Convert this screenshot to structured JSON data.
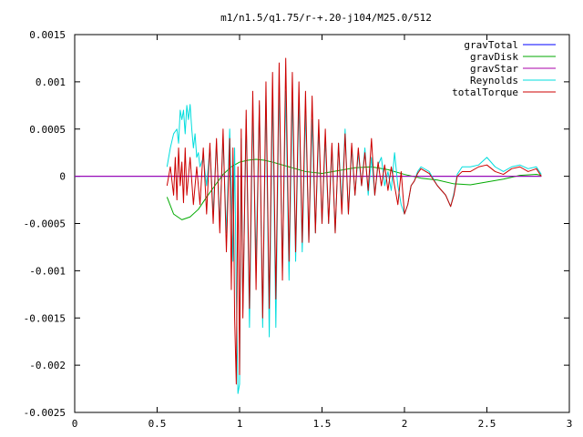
{
  "chart_data": {
    "type": "line",
    "title": "m1/n1.5/q1.75/r-+.20-j104/M25.0/512",
    "xlabel": "",
    "ylabel": "",
    "xlim": [
      0,
      3
    ],
    "ylim": [
      -0.0025,
      0.0015
    ],
    "x_ticks": [
      0,
      0.5,
      1,
      1.5,
      2,
      2.5,
      3
    ],
    "x_tick_labels": [
      "0",
      "0.5",
      "1",
      "1.5",
      "2",
      "2.5",
      "3"
    ],
    "y_ticks": [
      0.0015,
      0.001,
      0.0005,
      0,
      -0.0005,
      -0.001,
      -0.0015,
      -0.002,
      -0.0025
    ],
    "y_tick_labels": [
      "0.0015",
      "0.001",
      "0.0005",
      "0",
      "-0.0005",
      "-0.001",
      "-0.0015",
      "-0.002",
      "-0.0025"
    ],
    "grid": false,
    "legend_position": "top-right",
    "series": [
      {
        "name": "gravTotal",
        "color": "#0000ff",
        "x": [
          0,
          2.83
        ],
        "y": [
          0,
          0
        ]
      },
      {
        "name": "gravDisk",
        "color": "#00aa00",
        "x": [
          0.56,
          0.6,
          0.65,
          0.7,
          0.75,
          0.8,
          0.85,
          0.9,
          0.95,
          1.0,
          1.05,
          1.1,
          1.15,
          1.2,
          1.3,
          1.4,
          1.5,
          1.6,
          1.7,
          1.8,
          1.9,
          2.0,
          2.1,
          2.2,
          2.3,
          2.4,
          2.5,
          2.6,
          2.7,
          2.8,
          2.83
        ],
        "y": [
          -0.00022,
          -0.0004,
          -0.00046,
          -0.00043,
          -0.00035,
          -0.00022,
          -0.0001,
          2e-05,
          0.0001,
          0.00015,
          0.00017,
          0.00018,
          0.00017,
          0.00015,
          0.0001,
          5e-05,
          3e-05,
          6e-05,
          9e-05,
          0.0001,
          7e-05,
          2e-05,
          -2e-05,
          -4e-05,
          -8e-05,
          -9e-05,
          -6e-05,
          -3e-05,
          1e-05,
          2e-05,
          1e-05
        ]
      },
      {
        "name": "gravStar",
        "color": "#aa00aa",
        "x": [
          0,
          2.83
        ],
        "y": [
          0,
          0
        ]
      },
      {
        "name": "Reynolds",
        "color": "#00dddd",
        "x": [
          0.56,
          0.58,
          0.6,
          0.62,
          0.63,
          0.64,
          0.65,
          0.66,
          0.67,
          0.68,
          0.69,
          0.7,
          0.71,
          0.72,
          0.73,
          0.74,
          0.75,
          0.76,
          0.78,
          0.8,
          0.82,
          0.84,
          0.86,
          0.88,
          0.9,
          0.92,
          0.94,
          0.96,
          0.97,
          0.98,
          0.99,
          1.0,
          1.01,
          1.02,
          1.04,
          1.06,
          1.08,
          1.1,
          1.12,
          1.14,
          1.16,
          1.18,
          1.2,
          1.22,
          1.24,
          1.26,
          1.28,
          1.3,
          1.32,
          1.34,
          1.36,
          1.38,
          1.4,
          1.42,
          1.44,
          1.46,
          1.48,
          1.5,
          1.52,
          1.54,
          1.56,
          1.58,
          1.6,
          1.62,
          1.64,
          1.66,
          1.68,
          1.7,
          1.72,
          1.74,
          1.76,
          1.78,
          1.8,
          1.82,
          1.84,
          1.86,
          1.88,
          1.9,
          1.92,
          1.94,
          1.96,
          1.98,
          2.0,
          2.02,
          2.04,
          2.06,
          2.08,
          2.1,
          2.15,
          2.2,
          2.25,
          2.28,
          2.3,
          2.32,
          2.35,
          2.4,
          2.45,
          2.5,
          2.55,
          2.6,
          2.65,
          2.7,
          2.75,
          2.8,
          2.83
        ],
        "y": [
          0.0001,
          0.0003,
          0.00045,
          0.0005,
          0.00035,
          0.0007,
          0.0006,
          0.0007,
          0.00045,
          0.00075,
          0.0006,
          0.00076,
          0.0005,
          0.0003,
          0.00045,
          0.0002,
          0.00025,
          0.0001,
          0.0002,
          -0.0001,
          0.0003,
          -0.0004,
          0.00035,
          -0.0005,
          0.0004,
          -0.0006,
          0.0005,
          -0.0009,
          0.0003,
          -0.0012,
          -0.0023,
          -0.0022,
          0.0004,
          -0.0014,
          0.0006,
          -0.0016,
          0.0007,
          -0.0009,
          0.00075,
          -0.0016,
          0.00085,
          -0.0017,
          0.0009,
          -0.0016,
          0.001,
          -0.001,
          0.0009,
          -0.0011,
          0.00085,
          -0.0009,
          0.0008,
          -0.0008,
          0.0007,
          -0.0007,
          0.0006,
          -0.0006,
          0.0005,
          -0.0005,
          0.0004,
          -0.0005,
          0.0003,
          -0.0006,
          0.00035,
          -0.0003,
          0.0005,
          -0.0004,
          0.0003,
          -0.0002,
          0.00025,
          -0.0001,
          0.0003,
          -0.0002,
          0.0002,
          -0.0002,
          0.00012,
          0.0002,
          -0.0001,
          5e-05,
          -0.00015,
          0.00025,
          -0.0001,
          -0.0003,
          -0.0004,
          -0.0003,
          -0.0001,
          -5e-05,
          5e-05,
          0.0001,
          5e-05,
          -0.0001,
          -0.0002,
          -0.00032,
          -0.00018,
          2e-05,
          0.0001,
          0.0001,
          0.00012,
          0.0002,
          0.0001,
          5e-05,
          0.0001,
          0.00012,
          8e-05,
          0.0001,
          2e-05
        ]
      },
      {
        "name": "totalTorque",
        "color": "#cc0000",
        "x": [
          0.56,
          0.58,
          0.6,
          0.61,
          0.62,
          0.63,
          0.64,
          0.65,
          0.66,
          0.67,
          0.68,
          0.7,
          0.72,
          0.74,
          0.76,
          0.78,
          0.8,
          0.82,
          0.84,
          0.86,
          0.88,
          0.9,
          0.92,
          0.94,
          0.95,
          0.96,
          0.97,
          0.98,
          0.99,
          1.0,
          1.01,
          1.02,
          1.04,
          1.06,
          1.08,
          1.1,
          1.12,
          1.14,
          1.16,
          1.18,
          1.2,
          1.22,
          1.24,
          1.26,
          1.28,
          1.3,
          1.32,
          1.34,
          1.36,
          1.38,
          1.4,
          1.42,
          1.44,
          1.46,
          1.48,
          1.5,
          1.52,
          1.54,
          1.56,
          1.58,
          1.6,
          1.62,
          1.64,
          1.66,
          1.68,
          1.7,
          1.72,
          1.74,
          1.76,
          1.78,
          1.8,
          1.82,
          1.84,
          1.86,
          1.88,
          1.9,
          1.92,
          1.94,
          1.96,
          1.98,
          2.0,
          2.02,
          2.04,
          2.06,
          2.08,
          2.1,
          2.15,
          2.2,
          2.25,
          2.28,
          2.3,
          2.32,
          2.35,
          2.4,
          2.45,
          2.5,
          2.55,
          2.6,
          2.65,
          2.7,
          2.75,
          2.8,
          2.83
        ],
        "y": [
          -0.0001,
          0.0001,
          -0.0002,
          0.0002,
          -0.00025,
          0.0003,
          -0.0001,
          0.00015,
          -0.00028,
          0.0003,
          -0.0002,
          0.0002,
          -0.0003,
          0.0001,
          -0.0003,
          0.0003,
          -0.0004,
          0.00035,
          -0.0005,
          0.0004,
          -0.0006,
          0.0005,
          -0.0008,
          0.0004,
          -0.0012,
          0.0003,
          -0.0015,
          -0.0022,
          0.0001,
          -0.0021,
          0.0005,
          -0.0015,
          0.0007,
          -0.0014,
          0.0009,
          -0.0012,
          0.0008,
          -0.0015,
          0.001,
          -0.0014,
          0.0011,
          -0.0013,
          0.0012,
          -0.0011,
          0.00125,
          -0.0009,
          0.0011,
          -0.0008,
          0.001,
          -0.0007,
          0.0009,
          -0.0007,
          0.00085,
          -0.0006,
          0.0006,
          -0.0005,
          0.0005,
          -0.0005,
          0.00035,
          -0.0006,
          0.00035,
          -0.0004,
          0.00045,
          -0.0004,
          0.00035,
          -0.0002,
          0.0003,
          -0.0001,
          0.00025,
          -0.00015,
          0.0004,
          -0.0002,
          0.00015,
          -0.0001,
          0.00012,
          -0.00015,
          0.0001,
          -0.0001,
          -0.0003,
          5e-05,
          -0.0004,
          -0.0003,
          -0.0001,
          -5e-05,
          3e-05,
          8e-05,
          3e-05,
          -0.0001,
          -0.0002,
          -0.00032,
          -0.0002,
          0.0,
          5e-05,
          5e-05,
          0.0001,
          0.00012,
          5e-05,
          2e-05,
          8e-05,
          0.0001,
          5e-05,
          8e-05,
          0.0
        ]
      }
    ]
  }
}
